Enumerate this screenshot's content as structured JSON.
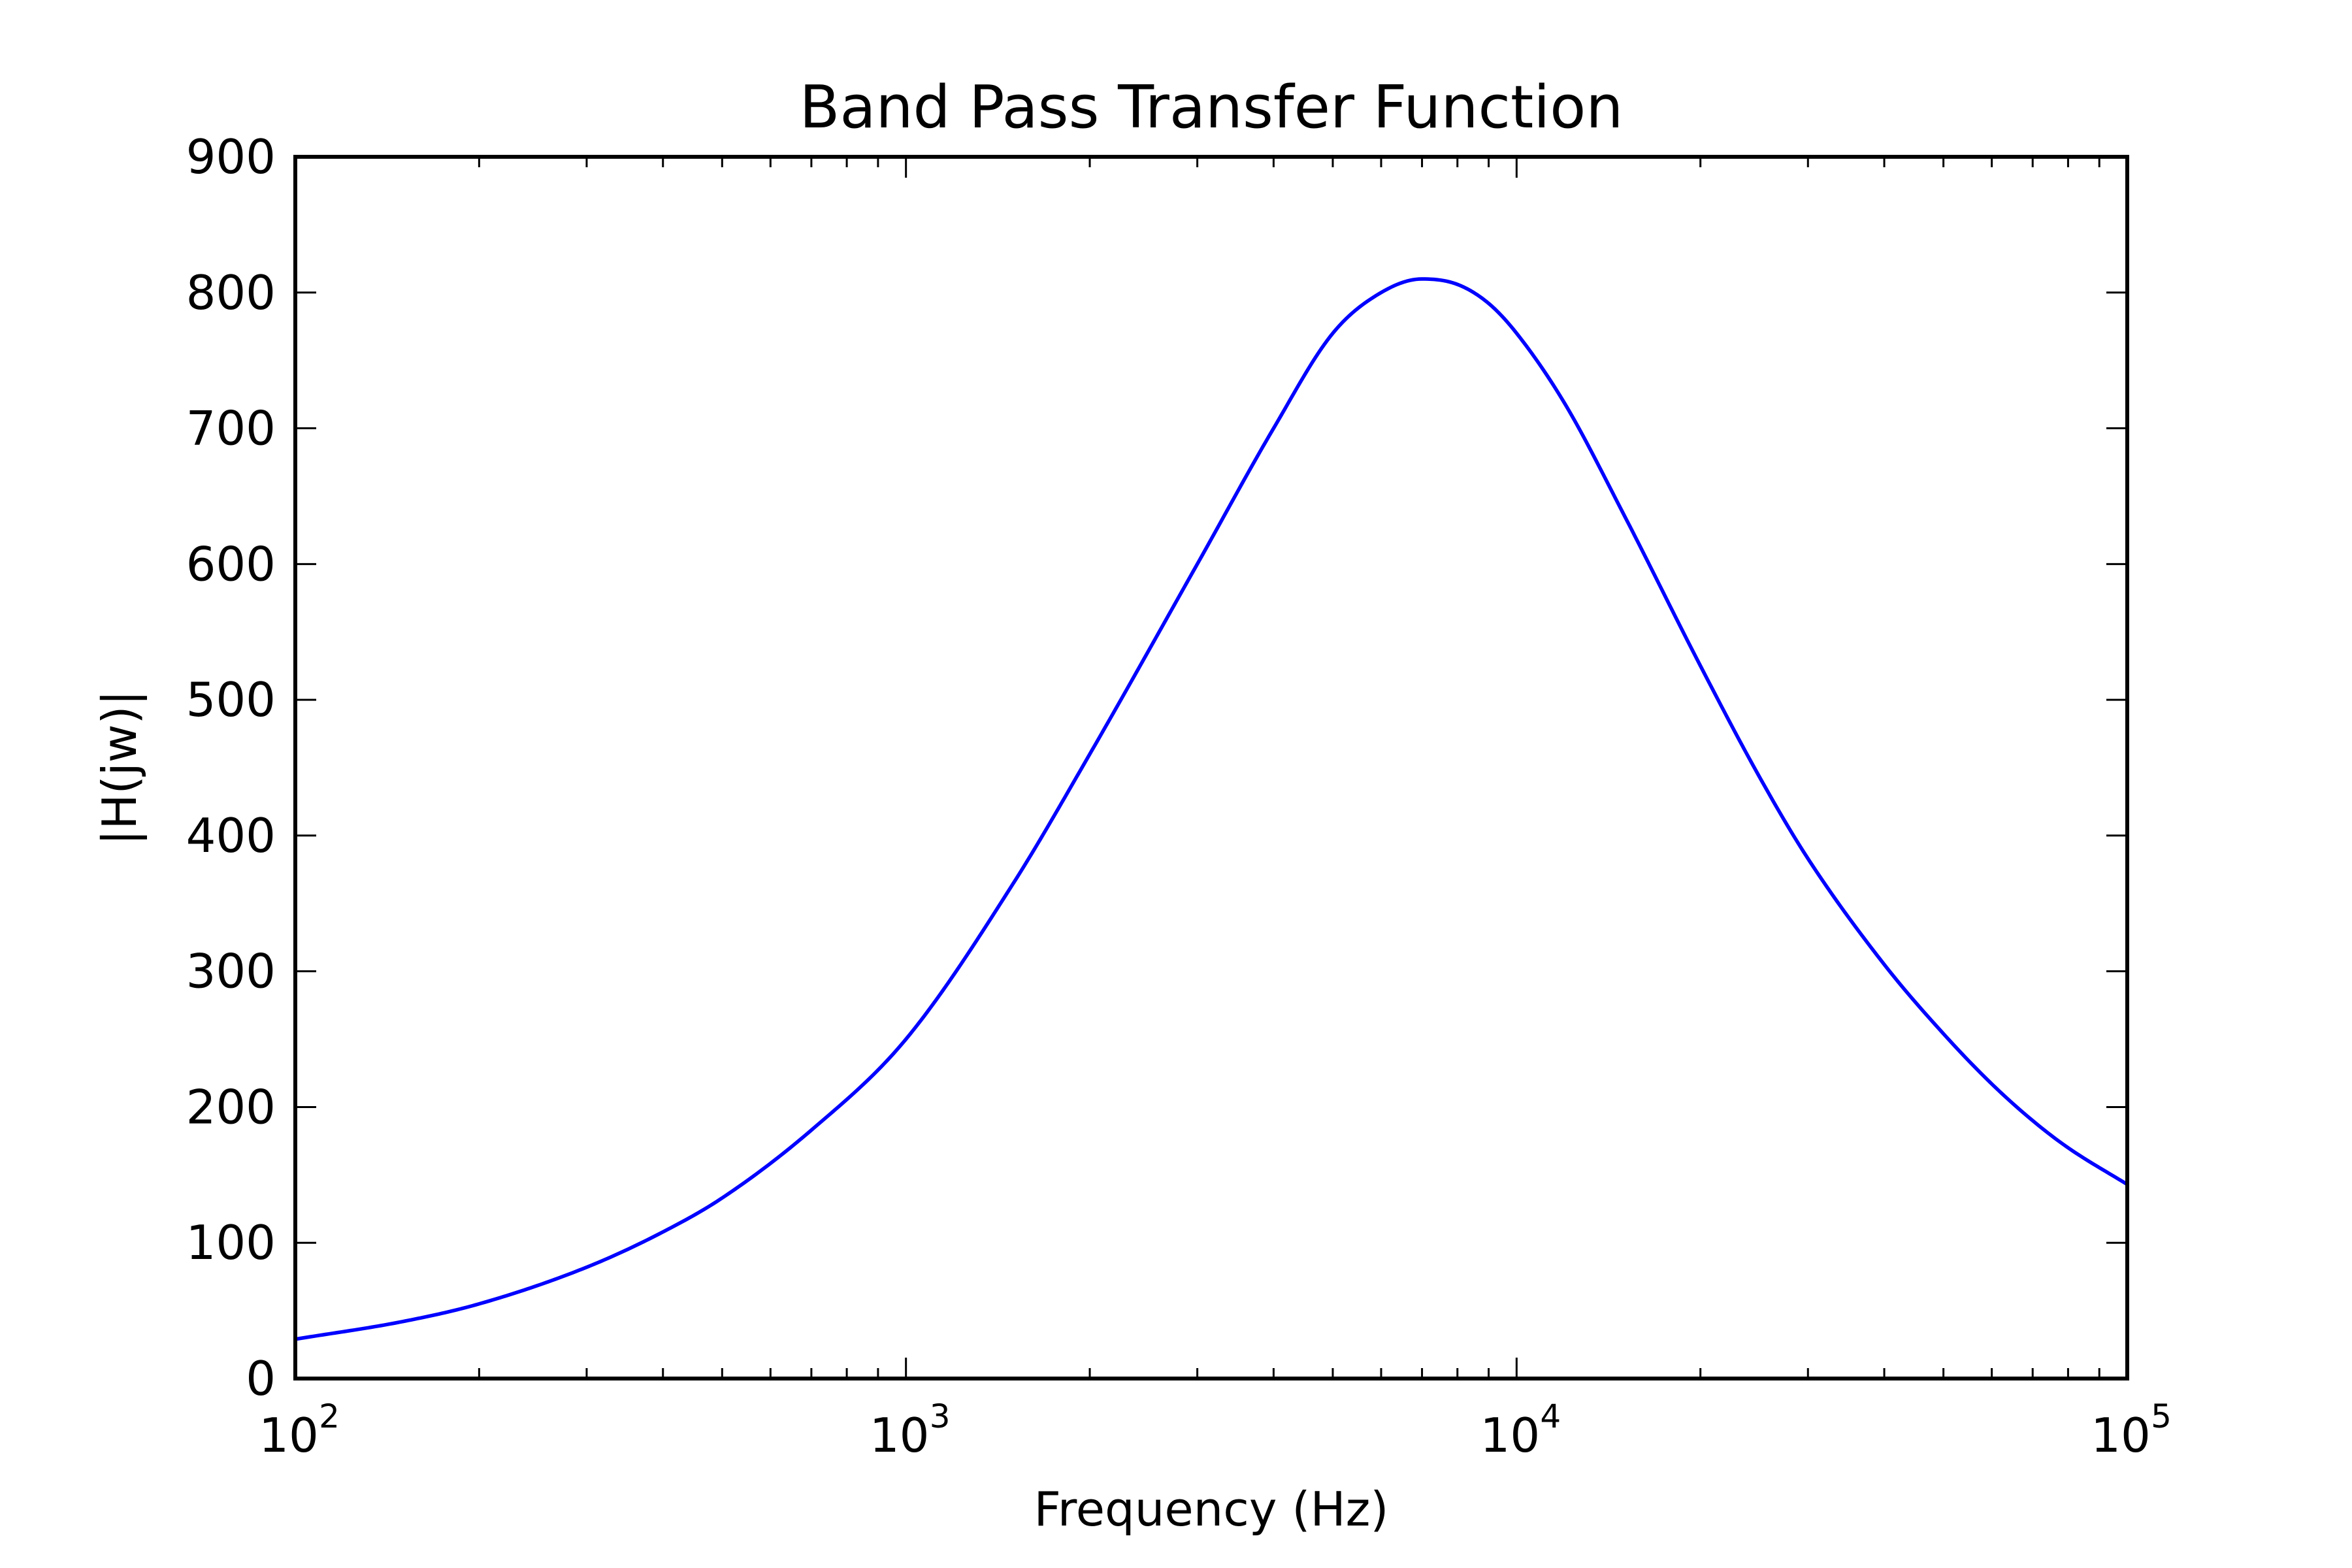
{
  "chart_data": {
    "type": "line",
    "title": "Band Pass Transfer Function",
    "xlabel": "Frequency (Hz)",
    "ylabel": "|H(jw)|",
    "x_scale": "log",
    "xlim": [
      100,
      100000
    ],
    "ylim": [
      0,
      900
    ],
    "grid": false,
    "line_color": "#0000ff",
    "x_ticks": [
      {
        "value": 100,
        "base": "10",
        "exp": "2"
      },
      {
        "value": 1000,
        "base": "10",
        "exp": "3"
      },
      {
        "value": 10000,
        "base": "10",
        "exp": "4"
      },
      {
        "value": 100000,
        "base": "10",
        "exp": "5"
      }
    ],
    "y_ticks": [
      {
        "value": 0,
        "label": "0"
      },
      {
        "value": 100,
        "label": "100"
      },
      {
        "value": 200,
        "label": "200"
      },
      {
        "value": 300,
        "label": "300"
      },
      {
        "value": 400,
        "label": "400"
      },
      {
        "value": 500,
        "label": "500"
      },
      {
        "value": 600,
        "label": "600"
      },
      {
        "value": 700,
        "label": "700"
      },
      {
        "value": 800,
        "label": "800"
      },
      {
        "value": 900,
        "label": "900"
      }
    ],
    "series": [
      {
        "x": [
          100,
          150,
          200,
          300,
          400,
          500,
          700,
          1000,
          1500,
          2000,
          3000,
          4000,
          5000,
          6000,
          7000,
          8000,
          9000,
          10000,
          12000,
          15000,
          20000,
          25000,
          30000,
          40000,
          50000,
          60000,
          70000,
          80000,
          100000
        ],
        "y": [
          29,
          42,
          55,
          82,
          108,
          133,
          183,
          250,
          365,
          460,
          600,
          700,
          770,
          800,
          810,
          806,
          792,
          770,
          718,
          636,
          525,
          443,
          383,
          305,
          254,
          217,
          190,
          170,
          143
        ]
      }
    ]
  }
}
